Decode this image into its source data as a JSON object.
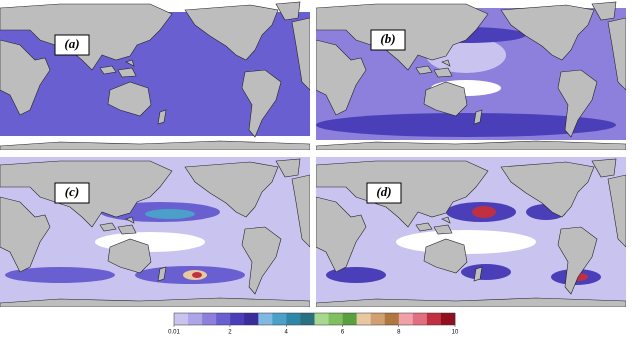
{
  "panels": [
    {
      "label": "(a)"
    },
    {
      "label": "(b)"
    },
    {
      "label": "(c)"
    },
    {
      "label": "(d)"
    }
  ],
  "colorbar": {
    "lim": [
      0.01,
      10
    ],
    "ticks": [
      0.01,
      2,
      4,
      6,
      8,
      10
    ],
    "colors": [
      "#c9c3f0",
      "#aea4e8",
      "#8c80dc",
      "#6a5fd0",
      "#4a3fb8",
      "#3a2c9a",
      "#7fb8e0",
      "#4aa0c8",
      "#2f87a8",
      "#2a7080",
      "#a8d890",
      "#80c060",
      "#5aa040",
      "#e8c8a0",
      "#d0a070",
      "#b07840",
      "#f0a0a8",
      "#e07080",
      "#c03040",
      "#901020"
    ]
  }
}
